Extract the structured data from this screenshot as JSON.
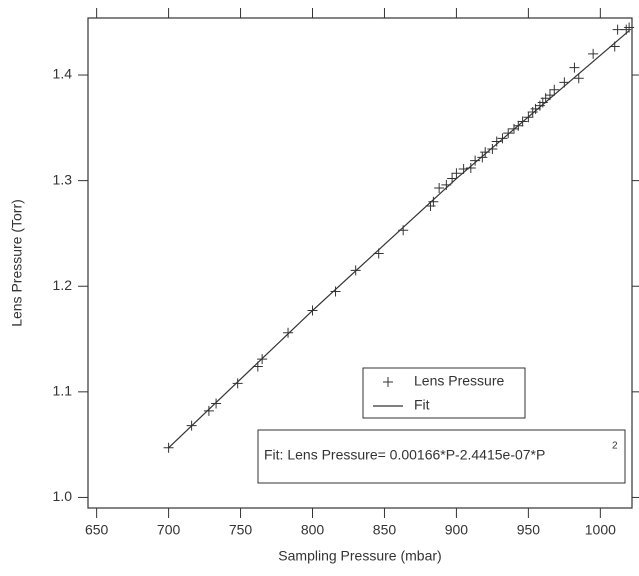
{
  "chart_data": {
    "type": "scatter",
    "xlabel": "Sampling Pressure (mbar)",
    "ylabel": "Lens Pressure (Torr)",
    "annotation": "Fit: Lens Pressure= 0.00166*P-2.4415e-07*P",
    "annotation_sup": "2",
    "xlim": [
      644,
      1022
    ],
    "ylim": [
      0.99,
      1.454
    ],
    "xticks": [
      650,
      700,
      750,
      800,
      850,
      900,
      950,
      1000
    ],
    "yticks": [
      {
        "value": 1,
        "label": "1.0"
      },
      1.1,
      1.2,
      1.3,
      1.4
    ],
    "series": [
      {
        "name": "Lens Pressure",
        "color": "#333333",
        "marker": "plus",
        "x": [
          700,
          716,
          728,
          733,
          748,
          762,
          765,
          783,
          800,
          816,
          830,
          846,
          863,
          882,
          884,
          888,
          893,
          897,
          900,
          905,
          910,
          913,
          918,
          920,
          925,
          928,
          932,
          936,
          940,
          943,
          946,
          950,
          953,
          955,
          958,
          960,
          962,
          965,
          968,
          975,
          982,
          985,
          995,
          1010,
          1012,
          1018,
          1020
        ],
        "values": [
          1.047,
          1.068,
          1.082,
          1.089,
          1.108,
          1.124,
          1.131,
          1.156,
          1.177,
          1.195,
          1.215,
          1.231,
          1.253,
          1.276,
          1.28,
          1.293,
          1.296,
          1.302,
          1.307,
          1.311,
          1.312,
          1.319,
          1.322,
          1.327,
          1.33,
          1.337,
          1.34,
          1.345,
          1.349,
          1.352,
          1.356,
          1.36,
          1.365,
          1.368,
          1.371,
          1.374,
          1.378,
          1.381,
          1.386,
          1.393,
          1.407,
          1.397,
          1.42,
          1.427,
          1.443,
          1.443,
          1.445
        ]
      },
      {
        "name": "Fit",
        "color": "#333333",
        "marker": "line",
        "x": [
          700,
          800,
          900,
          1020
        ],
        "values": [
          1.047,
          1.177,
          1.302,
          1.442
        ]
      }
    ]
  }
}
